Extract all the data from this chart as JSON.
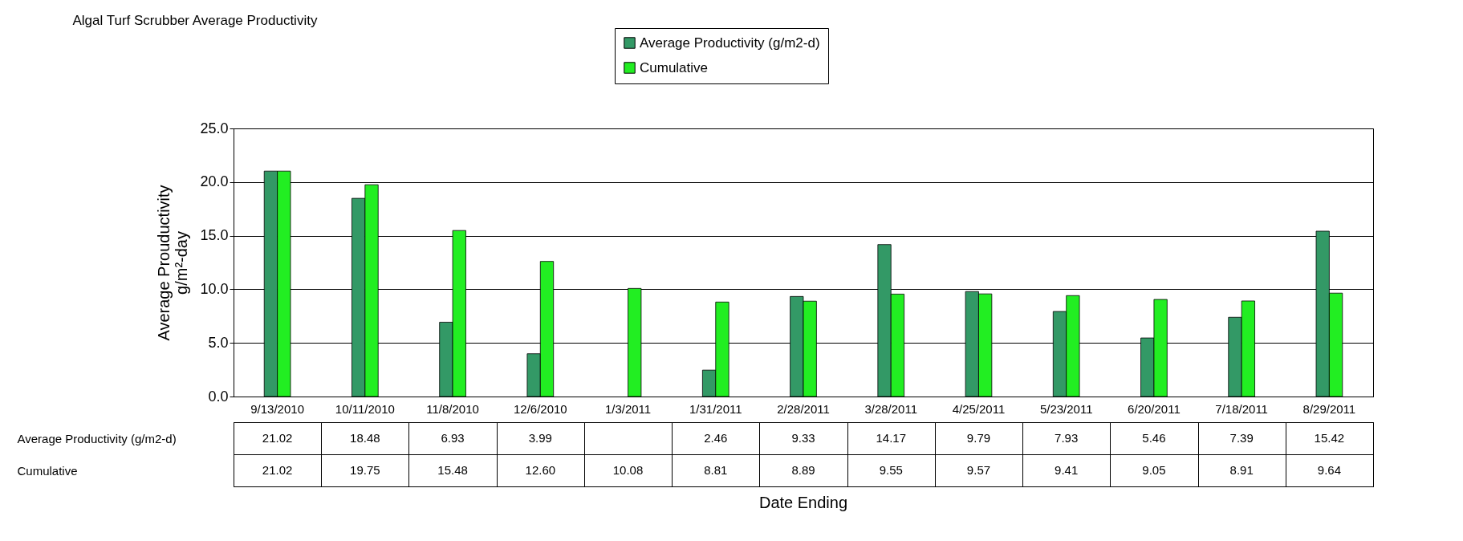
{
  "chart_data": {
    "type": "bar",
    "title": "Algal Turf Scrubber Average Productivity",
    "annotations": [
      "Date Ending"
    ],
    "ylabel": "Average Prouductivity\ng/m²-day",
    "categories": [
      "9/13/2010",
      "10/11/2010",
      "11/8/2010",
      "12/6/2010",
      "1/3/2011",
      "1/31/2011",
      "2/28/2011",
      "3/28/2011",
      "4/25/2011",
      "5/23/2011",
      "6/20/2011",
      "7/18/2011",
      "8/29/2011"
    ],
    "series": [
      {
        "name": "Average Productivity (g/m2-d)",
        "color": "#339966",
        "values": [
          21.02,
          18.48,
          6.93,
          3.99,
          null,
          2.46,
          9.33,
          14.17,
          9.79,
          7.93,
          5.46,
          7.39,
          15.42
        ],
        "value_labels": [
          "21.02",
          "18.48",
          "6.93",
          "3.99",
          null,
          "2.46",
          "9.33",
          "14.17",
          "9.79",
          "7.93",
          "5.46",
          "7.39",
          "15.42"
        ]
      },
      {
        "name": "Cumulative",
        "color": "#22ee22",
        "values": [
          21.02,
          19.75,
          15.48,
          12.6,
          10.08,
          8.81,
          8.89,
          9.55,
          9.57,
          9.41,
          9.05,
          8.91,
          9.64
        ],
        "value_labels": [
          "21.02",
          "19.75",
          "15.48",
          "12.60",
          "10.08",
          "8.81",
          "8.89",
          "9.55",
          "9.57",
          "9.41",
          "9.05",
          "8.91",
          "9.64"
        ]
      }
    ],
    "ylim": [
      0,
      25
    ],
    "yticks": [
      {
        "value": 0,
        "label": "0.0"
      },
      {
        "value": 5,
        "label": "5.0"
      },
      {
        "value": 10,
        "label": "10.0"
      },
      {
        "value": 15,
        "label": "15.0"
      },
      {
        "value": 20,
        "label": "20.0"
      },
      {
        "value": 25,
        "label": "25.0"
      }
    ],
    "grid": "y",
    "legend": "top"
  }
}
